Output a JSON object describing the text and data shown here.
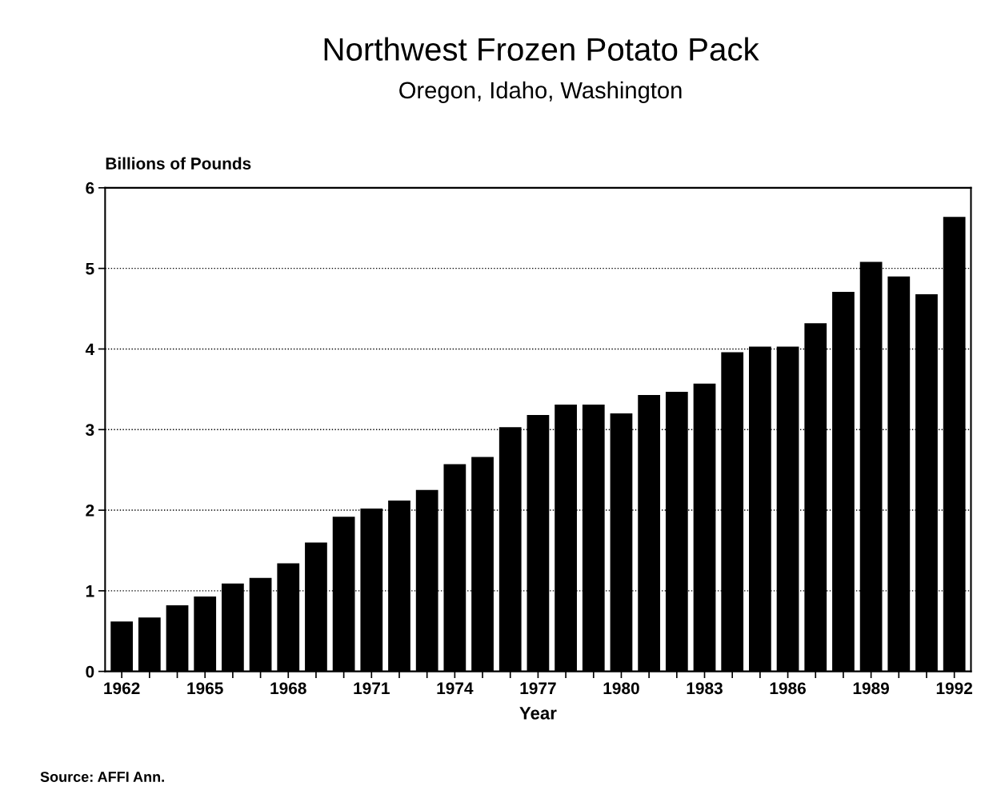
{
  "chart_data": {
    "type": "bar",
    "title": "Northwest Frozen Potato Pack",
    "subtitle": "Oregon, Idaho, Washington",
    "ylabel": "Billions of Pounds",
    "xlabel": "Year",
    "categories": [
      "1962",
      null,
      null,
      "1965",
      null,
      null,
      "1968",
      null,
      null,
      "1971",
      null,
      null,
      "1974",
      null,
      null,
      "1977",
      null,
      null,
      "1980",
      null,
      null,
      "1983",
      null,
      null,
      "1986",
      null,
      null,
      "1989",
      null,
      null,
      "1992"
    ],
    "values": [
      0.62,
      0.67,
      0.82,
      0.93,
      1.09,
      1.16,
      1.34,
      1.6,
      1.92,
      2.02,
      2.12,
      2.25,
      2.57,
      2.66,
      3.03,
      3.18,
      3.31,
      3.31,
      3.2,
      3.43,
      3.47,
      3.57,
      3.96,
      4.03,
      4.03,
      4.32,
      4.71,
      5.08,
      4.9,
      4.68,
      5.64
    ],
    "color": "#000000",
    "ylim": [
      0,
      6
    ],
    "yticks": [
      0,
      1,
      2,
      3,
      4,
      5,
      6
    ],
    "grid": "y",
    "legend": false,
    "annotations": [
      "Source: AFFI Ann."
    ]
  }
}
